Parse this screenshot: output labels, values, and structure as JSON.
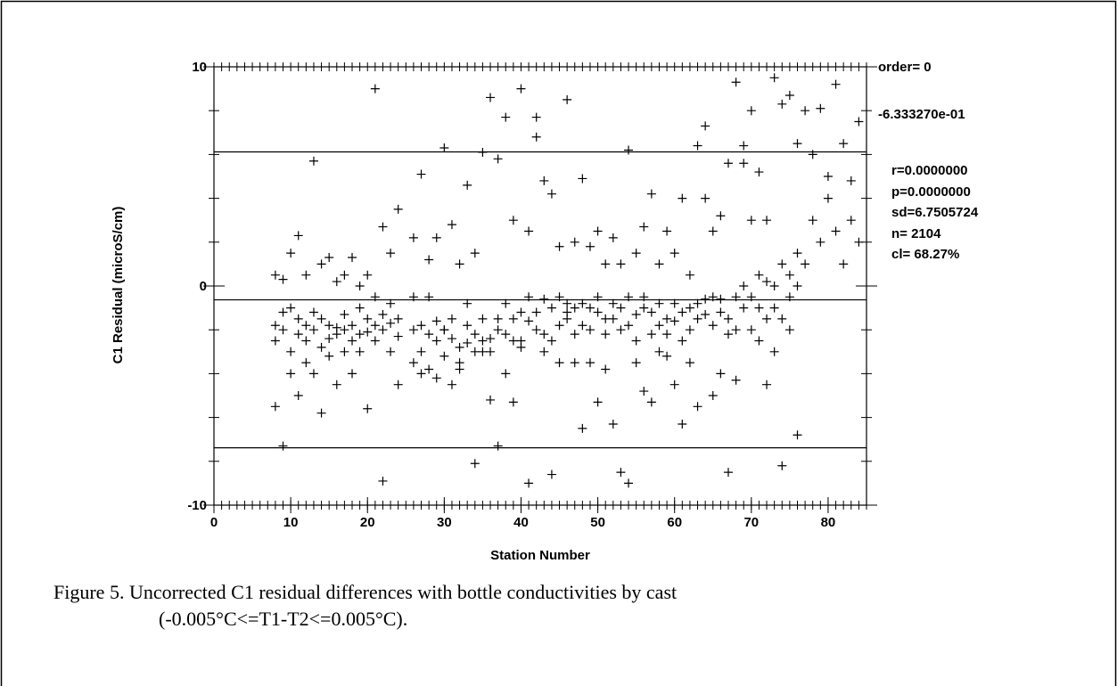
{
  "chart_data": {
    "type": "scatter",
    "xlabel": "Station Number",
    "ylabel": "C1 Residual (microS/cm)",
    "xlim": [
      0,
      85
    ],
    "ylim": [
      -10,
      10
    ],
    "xticks": [
      0,
      10,
      20,
      30,
      40,
      50,
      60,
      70,
      80
    ],
    "yticks": [
      -10,
      0,
      10
    ],
    "x_minor_ticks": [
      0,
      1,
      2,
      3,
      4,
      5,
      6,
      7,
      8,
      9,
      10,
      11,
      12,
      13,
      14,
      15,
      16,
      17,
      18,
      19,
      20,
      21,
      22,
      23,
      24,
      25,
      26,
      27,
      28,
      29,
      30,
      31,
      32,
      33,
      34,
      35,
      36,
      37,
      38,
      39,
      40,
      41,
      42,
      43,
      44,
      45,
      46,
      47,
      48,
      49,
      50,
      51,
      52,
      53,
      54,
      55,
      56,
      57,
      58,
      59,
      60,
      61,
      62,
      63,
      64,
      65,
      66,
      67,
      68,
      69,
      70,
      71,
      72,
      73,
      74,
      75,
      76,
      77,
      78,
      79,
      80,
      81,
      82,
      83,
      84,
      85
    ],
    "y_minor_ticks": [
      -10,
      -8,
      -6,
      -4,
      -2,
      0,
      2,
      4,
      6,
      8,
      10
    ],
    "reference_lines": [
      6.1172454,
      -0.633327,
      -7.3838994
    ],
    "color": "#000000",
    "stats": [
      "order= 0",
      "-6.333270e-01",
      "r=0.0000000",
      "p=0.0000000",
      "sd=6.7505724",
      "n= 2104",
      "cl=  68.27%"
    ],
    "caption": [
      "Figure 5. Uncorrected C1 residual differences with bottle conductivities by cast",
      "(-0.005°C<=T1-T2<=0.005°C)."
    ],
    "x": [
      8,
      8,
      8,
      8,
      9,
      9,
      9,
      9,
      10,
      10,
      10,
      10,
      11,
      11,
      11,
      11,
      12,
      12,
      12,
      12,
      13,
      13,
      13,
      13,
      14,
      14,
      14,
      14,
      15,
      15,
      15,
      15,
      16,
      16,
      16,
      16,
      17,
      17,
      17,
      17,
      18,
      18,
      18,
      18,
      19,
      19,
      19,
      19,
      20,
      20,
      20,
      20,
      21,
      21,
      21,
      21,
      22,
      22,
      22,
      22,
      23,
      23,
      23,
      23,
      24,
      24,
      24,
      24,
      26,
      26,
      26,
      26,
      27,
      27,
      27,
      27,
      28,
      28,
      28,
      28,
      29,
      29,
      29,
      29,
      30,
      30,
      30,
      30,
      31,
      31,
      31,
      31,
      32,
      32,
      32,
      32,
      33,
      33,
      33,
      33,
      34,
      34,
      34,
      34,
      35,
      35,
      35,
      35,
      36,
      36,
      36,
      36,
      37,
      37,
      37,
      37,
      38,
      38,
      38,
      38,
      39,
      39,
      39,
      39,
      40,
      40,
      40,
      40,
      41,
      41,
      41,
      41,
      42,
      42,
      42,
      42,
      43,
      43,
      43,
      43,
      44,
      44,
      44,
      44,
      45,
      45,
      45,
      45,
      46,
      46,
      46,
      46,
      47,
      47,
      47,
      47,
      48,
      48,
      48,
      48,
      49,
      49,
      49,
      49,
      50,
      50,
      50,
      50,
      51,
      51,
      51,
      51,
      52,
      52,
      52,
      52,
      53,
      53,
      53,
      53,
      54,
      54,
      54,
      54,
      55,
      55,
      55,
      55,
      56,
      56,
      56,
      56,
      57,
      57,
      57,
      57,
      58,
      58,
      58,
      58,
      59,
      59,
      59,
      59,
      60,
      60,
      60,
      60,
      61,
      61,
      61,
      61,
      62,
      62,
      62,
      62,
      63,
      63,
      63,
      63,
      64,
      64,
      64,
      64,
      65,
      65,
      65,
      65,
      66,
      66,
      66,
      66,
      67,
      67,
      67,
      67,
      68,
      68,
      68,
      68,
      69,
      69,
      69,
      69,
      70,
      70,
      70,
      70,
      71,
      71,
      71,
      71,
      72,
      72,
      72,
      72,
      73,
      73,
      73,
      73,
      74,
      74,
      74,
      74,
      75,
      75,
      75,
      75,
      76,
      76,
      76,
      76,
      77,
      77,
      78,
      78,
      79,
      79,
      80,
      80,
      81,
      81,
      82,
      82,
      83,
      83,
      84,
      84
    ],
    "y": [
      -2.5,
      0.5,
      -1.8,
      -5.5,
      -2,
      0.3,
      -1.2,
      -7.3,
      -3,
      1.5,
      -1,
      -4,
      -1.5,
      2.3,
      -2.2,
      -5,
      -1.8,
      0.5,
      -2.5,
      -3.5,
      -1.2,
      5.7,
      -2,
      -4,
      -1.5,
      1,
      -2.8,
      -5.8,
      -1.8,
      1.3,
      -2.4,
      -3.2,
      -1.9,
      0.2,
      -2.2,
      -4.5,
      -2,
      0.5,
      -1.3,
      -3,
      -2.5,
      1.3,
      -1.8,
      -4,
      -1,
      0,
      -2.2,
      -3,
      -1.5,
      -5.6,
      -2.1,
      0.5,
      -0.5,
      9,
      -1.8,
      -2.5,
      -1.3,
      2.7,
      -2,
      -8.9,
      -1.7,
      1.5,
      -0.8,
      -3,
      -1.5,
      3.5,
      -2.3,
      -4.5,
      -2,
      2.2,
      -3.5,
      -0.5,
      -1.8,
      5.1,
      -3,
      -4,
      -2.2,
      1.2,
      -3.8,
      -0.5,
      -2.5,
      2.2,
      -1.6,
      -4.2,
      -2,
      6.3,
      -3.2,
      -2,
      -2.4,
      2.8,
      -1.5,
      -4.5,
      -2.8,
      1,
      -3.5,
      -3.8,
      -2.6,
      4.6,
      -1.8,
      -0.8,
      -3,
      1.5,
      -2.2,
      -8.1,
      -2.5,
      6.1,
      -1.5,
      -3,
      -2.4,
      8.6,
      -3,
      -5.2,
      -2,
      5.8,
      -1.5,
      -7.3,
      -2.2,
      7.7,
      -0.8,
      -4,
      -1.5,
      3,
      -2.5,
      -5.3,
      -1.2,
      9,
      -2.8,
      -2.5,
      -0.5,
      2.5,
      -1.6,
      -9,
      -1.2,
      7.7,
      -2,
      6.8,
      -0.6,
      4.8,
      -2.2,
      -3,
      -1,
      4.2,
      -2.5,
      -8.6,
      -0.5,
      1.8,
      -1.8,
      -3.5,
      -1.2,
      8.5,
      -0.8,
      -1.5,
      -1,
      2,
      -2.2,
      -3.5,
      -0.8,
      4.9,
      -1.8,
      -6.5,
      -1,
      1.8,
      -2,
      -3.5,
      -1.2,
      2.5,
      -0.5,
      -5.3,
      -1.5,
      1,
      -2.2,
      -3.8,
      -0.8,
      2.2,
      -1.5,
      -6.3,
      -1,
      1,
      -2,
      -8.5,
      -0.5,
      6.2,
      -1.8,
      -9,
      -1.3,
      1.5,
      -2.5,
      -3.5,
      -1,
      2.7,
      -0.5,
      -4.8,
      -1.2,
      4.2,
      -2.2,
      -5.3,
      -0.8,
      1,
      -1.8,
      -3,
      -1.5,
      2.5,
      -2.2,
      -3.2,
      -0.8,
      1.5,
      -1.6,
      -4.5,
      -1.2,
      4,
      -2.5,
      -6.3,
      -1,
      0.5,
      -2,
      -3.5,
      -0.8,
      6.4,
      -1.5,
      -5.5,
      -1.3,
      7.3,
      -0.6,
      4,
      -0.5,
      2.5,
      -1.8,
      -5,
      -0.6,
      3.2,
      -1.2,
      -4,
      -1.5,
      5.6,
      -2.2,
      -8.5,
      -0.5,
      9.3,
      -2,
      -4.3,
      0,
      5.6,
      -1,
      6.4,
      -0.5,
      8,
      -2,
      3,
      0.5,
      5.2,
      -1,
      -2.5,
      0.2,
      3,
      -1.5,
      -4.5,
      0,
      9.5,
      -1,
      -3,
      1,
      8.3,
      -1.5,
      -8.2,
      0.5,
      8.7,
      -0.5,
      -2,
      0,
      6.5,
      -6.8,
      1.5,
      1,
      8,
      3,
      6,
      2,
      8.1,
      4,
      5,
      2.5,
      9.2,
      1,
      6.5,
      3,
      4.8,
      2,
      7.5
    ]
  }
}
